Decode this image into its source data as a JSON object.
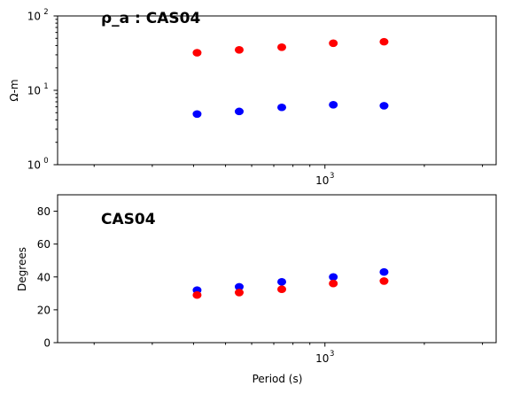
{
  "chart_data": [
    {
      "type": "scatter",
      "title": "ρ_a : CAS04",
      "xlabel": "",
      "ylabel": "Ω-m",
      "x_scale": "log",
      "y_scale": "log",
      "xlim": [
        155,
        3300
      ],
      "ylim": [
        1,
        100
      ],
      "y_ticks": [
        {
          "value": 1,
          "base": "10",
          "exp": "0"
        },
        {
          "value": 10,
          "base": "10",
          "exp": "1"
        },
        {
          "value": 100,
          "base": "10",
          "exp": "2"
        }
      ],
      "x_ticks": [
        {
          "value": 1000,
          "base": "10",
          "exp": "3"
        }
      ],
      "series": [
        {
          "color": "#ff0000",
          "x": [
            410,
            550,
            740,
            1060,
            1510
          ],
          "y": [
            32,
            35,
            38,
            43,
            45
          ]
        },
        {
          "color": "#0000ff",
          "x": [
            410,
            550,
            740,
            1060,
            1510
          ],
          "y": [
            4.8,
            5.2,
            5.9,
            6.4,
            6.2
          ]
        }
      ]
    },
    {
      "type": "scatter",
      "title": "CAS04",
      "xlabel": "Period (s)",
      "ylabel": "Degrees",
      "x_scale": "log",
      "xlim": [
        155,
        3300
      ],
      "ylim": [
        0,
        90
      ],
      "y_ticks": [
        {
          "value": 0,
          "label": "0"
        },
        {
          "value": 20,
          "label": "20"
        },
        {
          "value": 40,
          "label": "40"
        },
        {
          "value": 60,
          "label": "60"
        },
        {
          "value": 80,
          "label": "80"
        }
      ],
      "x_ticks": [
        {
          "value": 1000,
          "base": "10",
          "exp": "3"
        }
      ],
      "series": [
        {
          "color": "#0000ff",
          "x": [
            410,
            550,
            740,
            1060,
            1510
          ],
          "y": [
            32,
            34,
            37,
            40,
            43
          ]
        },
        {
          "color": "#ff0000",
          "x": [
            410,
            550,
            740,
            1060,
            1510
          ],
          "y": [
            29,
            30.5,
            32.5,
            36,
            37.5
          ]
        }
      ]
    }
  ]
}
